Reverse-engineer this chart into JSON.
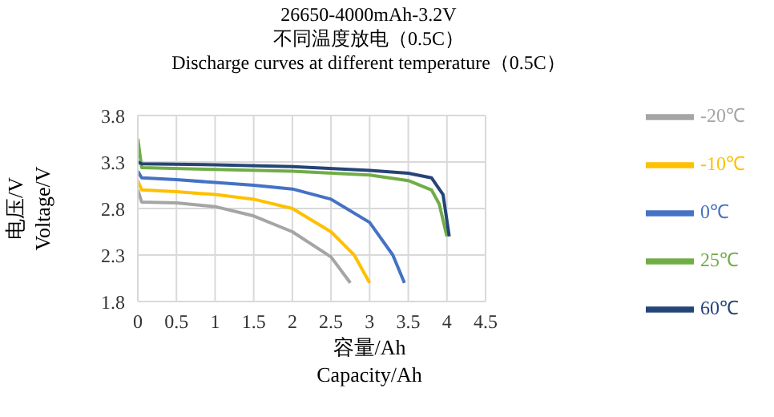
{
  "chart_data": {
    "type": "line",
    "title": "26650-4000mAh-3.2V",
    "subtitle": "不同温度放电（0.5C）\nDischarge curves at different temperature（0.5C）",
    "xlabel": "容量/Ah\nCapacity/Ah",
    "ylabel": "电压/V\nVoltage/V",
    "xlim": [
      0,
      4.5
    ],
    "xticks": [
      0,
      0.5,
      1,
      1.5,
      2,
      2.5,
      3,
      3.5,
      4,
      4.5
    ],
    "ylim": [
      1.8,
      3.8
    ],
    "yticks": [
      1.8,
      2.3,
      2.8,
      3.3,
      3.8
    ],
    "grid": true,
    "legend": "right",
    "marker": "none",
    "line_style": "solid",
    "series": [
      {
        "name": "-20℃",
        "color": "#a5a5a5",
        "x": [
          0,
          0.05,
          0.5,
          1,
          1.5,
          2,
          2.5,
          2.75
        ],
        "values": [
          3.0,
          2.87,
          2.86,
          2.82,
          2.72,
          2.55,
          2.28,
          2.0
        ]
      },
      {
        "name": "-10℃",
        "color": "#ffc000",
        "x": [
          0,
          0.05,
          0.5,
          1,
          1.5,
          2,
          2.5,
          2.8,
          3
        ],
        "values": [
          3.1,
          3.0,
          2.98,
          2.95,
          2.9,
          2.8,
          2.55,
          2.3,
          2.0
        ]
      },
      {
        "name": "0℃",
        "color": "#4472c4",
        "x": [
          0,
          0.05,
          0.5,
          1,
          1.5,
          2,
          2.5,
          3,
          3.3,
          3.45
        ],
        "values": [
          3.2,
          3.13,
          3.11,
          3.08,
          3.05,
          3.01,
          2.9,
          2.65,
          2.3,
          2.0
        ]
      },
      {
        "name": "25℃",
        "color": "#70ad47",
        "x": [
          0,
          0.05,
          1,
          2,
          3,
          3.5,
          3.8,
          3.9,
          4
        ],
        "values": [
          3.55,
          3.24,
          3.22,
          3.2,
          3.16,
          3.1,
          3.0,
          2.85,
          2.5
        ]
      },
      {
        "name": "60℃",
        "color": "#264478",
        "x": [
          0,
          0.05,
          1,
          2,
          3,
          3.5,
          3.8,
          3.95,
          4.03
        ],
        "values": [
          3.3,
          3.28,
          3.27,
          3.25,
          3.21,
          3.18,
          3.13,
          2.95,
          2.5
        ]
      }
    ]
  }
}
